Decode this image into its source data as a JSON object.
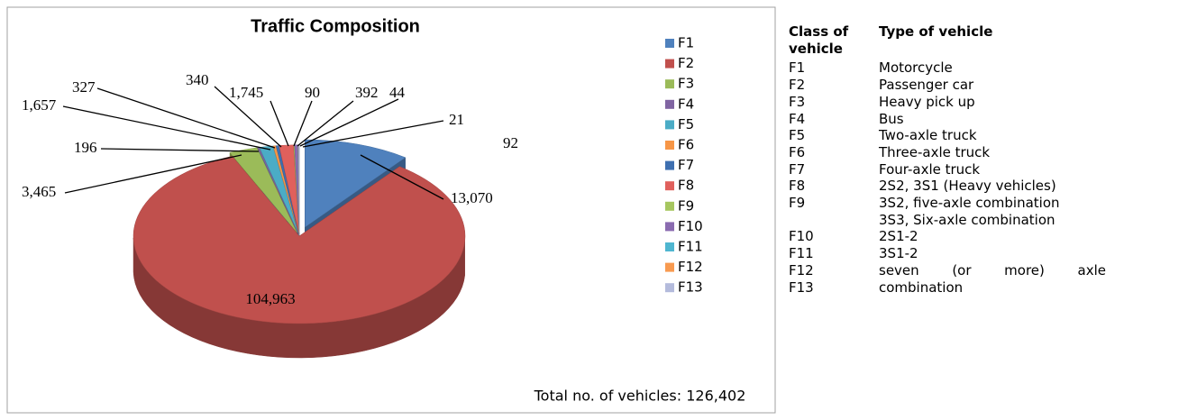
{
  "chart_data": {
    "type": "pie",
    "title": "Traffic Composition",
    "categories": [
      "F1",
      "F2",
      "F3",
      "F4",
      "F5",
      "F6",
      "F7",
      "F8",
      "F9",
      "F10",
      "F11",
      "F12",
      "F13"
    ],
    "values": [
      13070,
      104963,
      3465,
      196,
      1657,
      327,
      340,
      1745,
      90,
      392,
      44,
      21,
      92
    ],
    "value_labels": [
      "13,070",
      "104,963",
      "3,465",
      "196",
      "1,657",
      "327",
      "340",
      "1,745",
      "90",
      "392",
      "44",
      "21",
      "92"
    ],
    "colors": [
      "#4f81bd",
      "#c0504d",
      "#9bbb59",
      "#8064a2",
      "#4bacc6",
      "#f79646",
      "#3e6fb0",
      "#e0605c",
      "#a6c65f",
      "#8a6bb0",
      "#4fb6d0",
      "#f89a50",
      "#b4bbdc"
    ],
    "annotation": "Total no. of vehicles: 126,402",
    "legend": "right"
  },
  "table": {
    "headers": [
      "Class of vehicle",
      "Type of vehicle"
    ],
    "rows": [
      {
        "class": "F1",
        "type": [
          "Motorcycle"
        ]
      },
      {
        "class": "F2",
        "type": [
          "Passenger car"
        ]
      },
      {
        "class": "F3",
        "type": [
          "Heavy pick up"
        ]
      },
      {
        "class": "F4",
        "type": [
          "Bus"
        ]
      },
      {
        "class": "F5",
        "type": [
          "Two-axle truck"
        ]
      },
      {
        "class": "F6",
        "type": [
          "Three-axle truck"
        ]
      },
      {
        "class": "F7",
        "type": [
          "Four-axle truck"
        ]
      },
      {
        "class": "F8",
        "type": [
          "2S2, 3S1 (Heavy vehicles)"
        ]
      },
      {
        "class": "F9",
        "type": [
          "3S2, five-axle combination",
          "3S3, Six-axle combination"
        ]
      },
      {
        "class": "F10",
        "type": [
          "2S1-2"
        ]
      },
      {
        "class": "F11",
        "type": [
          "3S1-2"
        ]
      },
      {
        "class": "F12",
        "type": [
          "seven (or more) axle"
        ]
      },
      {
        "class": "F13",
        "type": [
          "combination"
        ]
      }
    ]
  }
}
